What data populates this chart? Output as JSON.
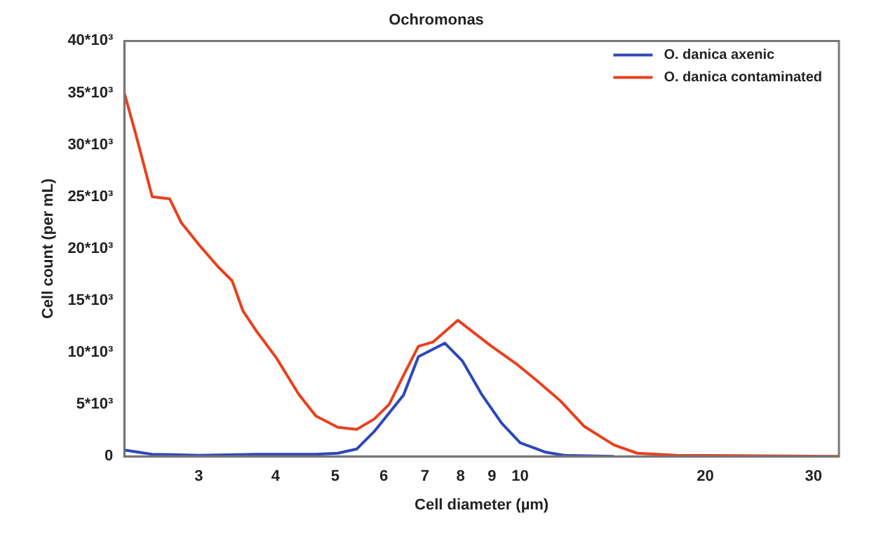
{
  "chart_data": {
    "type": "line",
    "title": "Ochromonas",
    "xlabel": "Cell diameter (µm)",
    "ylabel": "Cell count (per mL)",
    "log": "x",
    "grid": false,
    "legend": "top right",
    "marker": "none",
    "line_style": "solid",
    "xlim": [
      2.27,
      33
    ],
    "xticks": [
      3,
      4,
      5,
      6,
      7,
      8,
      9,
      10,
      20,
      30
    ],
    "ylim": [
      0,
      40000
    ],
    "yticks": [
      {
        "value": 0,
        "label": "0"
      },
      {
        "value": 5000,
        "label": "5*10³"
      },
      {
        "value": 10000,
        "label": "10*10³"
      },
      {
        "value": 15000,
        "label": "15*10³"
      },
      {
        "value": 20000,
        "label": "20*10³"
      },
      {
        "value": 25000,
        "label": "25*10³"
      },
      {
        "value": 30000,
        "label": "30*10³"
      },
      {
        "value": 35000,
        "label": "35*10³"
      },
      {
        "value": 40000,
        "label": "40*10³"
      }
    ],
    "series": [
      {
        "name": "O. danica axenic",
        "color": "#2e48b8",
        "x": [
          2.27,
          2.52,
          3,
          3.73,
          4.65,
          5.05,
          5.42,
          5.79,
          6.46,
          6.83,
          7.54,
          8.05,
          8.65,
          9.33,
          10,
          11,
          11.8,
          14.2
        ],
        "values": [
          600,
          200,
          100,
          200,
          200,
          300,
          700,
          2400,
          5900,
          9600,
          10900,
          9200,
          6000,
          3200,
          1300,
          400,
          100,
          0
        ]
      },
      {
        "name": "O. danica contaminated",
        "color": "#e8411e",
        "x": [
          2.27,
          2.37,
          2.52,
          2.69,
          2.81,
          3,
          3.22,
          3.4,
          3.54,
          3.73,
          4.01,
          4.36,
          4.65,
          5.05,
          5.42,
          5.79,
          6.12,
          6.46,
          6.83,
          7.21,
          7.92,
          8.98,
          9.86,
          10.59,
          11.6,
          12.7,
          14.2,
          15.5,
          18,
          33
        ],
        "values": [
          35000,
          31000,
          25000,
          24800,
          22500,
          20400,
          18300,
          16900,
          14000,
          12000,
          9500,
          6000,
          3900,
          2800,
          2600,
          3600,
          5000,
          7800,
          10600,
          11000,
          13100,
          10600,
          8900,
          7400,
          5400,
          2900,
          1100,
          300,
          100,
          0
        ]
      }
    ]
  }
}
